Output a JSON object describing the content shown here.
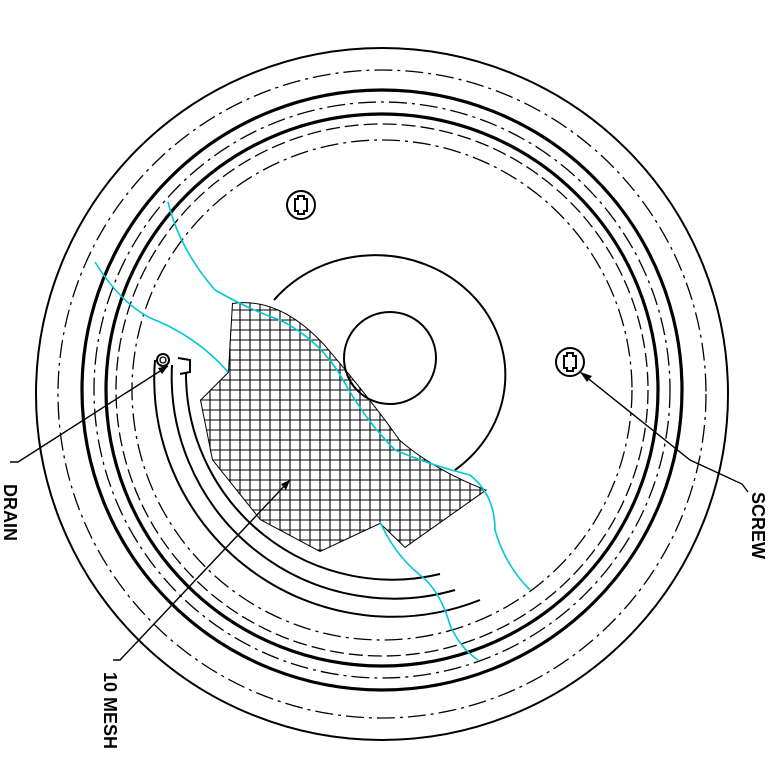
{
  "labels": {
    "screw": "SCREW",
    "drain": "DRAIN",
    "mesh": "10 MESH"
  },
  "colors": {
    "line": "#000000",
    "cutaway": "#00c8d8",
    "background": "#ffffff"
  }
}
